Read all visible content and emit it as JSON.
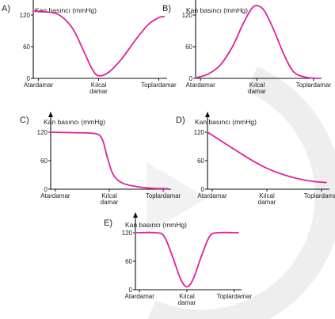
{
  "chart_data": [
    {
      "type": "line",
      "panel_label": "A)",
      "title": "Kan basıncı (mmHg)",
      "yticks": [
        "0",
        "60",
        "120"
      ],
      "ylim": [
        0,
        150
      ],
      "categories": [
        "Atardamar",
        "Kılcal damar",
        "Toplardamar"
      ],
      "x": [
        0,
        0.1,
        0.2,
        0.3,
        0.38,
        0.45,
        0.5,
        0.58,
        0.68,
        0.78,
        0.88,
        0.96,
        1.0
      ],
      "values": [
        128,
        126,
        120,
        95,
        55,
        18,
        5,
        12,
        38,
        72,
        102,
        115,
        117
      ],
      "color": "#e0219a"
    },
    {
      "type": "line",
      "panel_label": "B)",
      "title": "Kan basıncı (mmHg)",
      "yticks": [
        "0",
        "60",
        "120"
      ],
      "ylim": [
        0,
        150
      ],
      "categories": [
        "Atardamar",
        "Kılcal damar",
        "Toplardamar"
      ],
      "x": [
        0,
        0.1,
        0.2,
        0.3,
        0.38,
        0.45,
        0.5,
        0.56,
        0.64,
        0.72,
        0.8,
        0.9,
        1.0
      ],
      "values": [
        1,
        8,
        25,
        60,
        100,
        130,
        138,
        128,
        90,
        45,
        12,
        2,
        0
      ],
      "color": "#e0219a"
    },
    {
      "type": "line",
      "panel_label": "C)",
      "title": "Kan basıncı (mmHg)",
      "yticks": [
        "0",
        "60",
        "120"
      ],
      "ylim": [
        0,
        150
      ],
      "categories": [
        "Atardamar",
        "Kılcal damar",
        "Toplardamar"
      ],
      "x": [
        0,
        0.2,
        0.38,
        0.44,
        0.48,
        0.52,
        0.56,
        0.62,
        0.72,
        0.85,
        1.0
      ],
      "values": [
        120,
        119,
        117,
        105,
        70,
        38,
        22,
        12,
        6,
        2,
        1
      ],
      "color": "#e0219a"
    },
    {
      "type": "line",
      "panel_label": "D)",
      "title": "Kan basıncı (mmHg)",
      "yticks": [
        "0",
        "60",
        "120"
      ],
      "ylim": [
        0,
        150
      ],
      "categories": [
        "Atardamar",
        "Kılcal damar",
        "Toplardamar"
      ],
      "x": [
        0,
        0.1,
        0.2,
        0.3,
        0.4,
        0.5,
        0.6,
        0.7,
        0.8,
        0.9,
        1.0
      ],
      "values": [
        120,
        104,
        88,
        72,
        57,
        44,
        34,
        26,
        20,
        16,
        14
      ],
      "color": "#e0219a"
    },
    {
      "type": "line",
      "panel_label": "E)",
      "title": "Kan basıncı (mmHg)",
      "yticks": [
        "0",
        "60",
        "120"
      ],
      "ylim": [
        0,
        150
      ],
      "categories": [
        "Atardamar",
        "Kılcal damar",
        "Toplardamar"
      ],
      "x": [
        0,
        0.2,
        0.28,
        0.36,
        0.44,
        0.5,
        0.56,
        0.64,
        0.72,
        0.8,
        1.0
      ],
      "values": [
        120,
        120,
        112,
        70,
        22,
        6,
        22,
        70,
        112,
        120,
        120
      ],
      "color": "#e0219a"
    }
  ]
}
